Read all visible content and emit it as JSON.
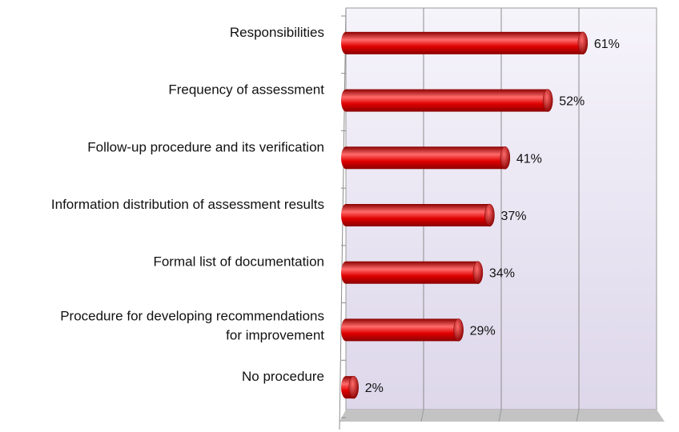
{
  "chart_data": {
    "type": "bar",
    "orientation": "horizontal",
    "title": "",
    "xlabel": "",
    "ylabel": "",
    "categories": [
      "Responsibilities",
      "Frequency of assessment",
      "Follow-up procedure and its verification",
      "Information distribution of assessment results",
      "Formal list of documentation",
      "Procedure for developing recommendations for improvement",
      "No procedure"
    ],
    "values": [
      61,
      52,
      41,
      37,
      34,
      29,
      2
    ],
    "value_labels": [
      "61%",
      "52%",
      "41%",
      "37%",
      "34%",
      "29%",
      "2%"
    ],
    "category_label_lines": [
      [
        "Responsibilities"
      ],
      [
        "Frequency of assessment"
      ],
      [
        "Follow-up procedure and its verification"
      ],
      [
        "Information distribution of assessment results"
      ],
      [
        "Formal list of documentation"
      ],
      [
        "Procedure for developing recommendations",
        "for improvement"
      ],
      [
        "No procedure"
      ]
    ],
    "xlim": [
      0,
      80
    ],
    "grid": true,
    "legend": "none",
    "colors": {
      "bar": "#e00000",
      "bar_highlight": "#ff6b6b",
      "bar_shadow": "#8a0000",
      "wall_top": "#f6f4fb",
      "wall_bottom": "#ddd7ea",
      "floor": "#c3c3c3",
      "grid": "#8c8c8c"
    }
  }
}
